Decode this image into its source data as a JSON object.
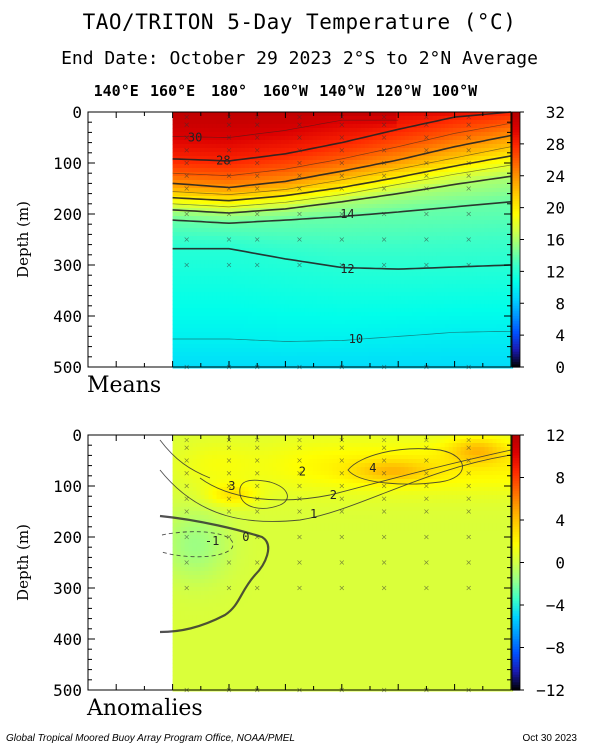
{
  "header": {
    "title": "TAO/TRITON 5-Day Temperature (°C)",
    "subtitle": "End Date: October 29 2023   2°S to 2°N Average"
  },
  "footer": {
    "left": "Global Tropical Moored Buoy Array Program Office, NOAA/PMEL",
    "right": "Oct 30 2023"
  },
  "chart_data": [
    {
      "type": "heatmap",
      "panel_label": "Means",
      "ylabel": "Depth (m)",
      "y_reversed": true,
      "ylim": [
        0,
        500
      ],
      "xlim_deg_east": [
        130,
        280
      ],
      "data_start_deg_east": 160,
      "x_ticks": [
        {
          "lon": 140,
          "label": "140°E"
        },
        {
          "lon": 160,
          "label": "160°E"
        },
        {
          "lon": 180,
          "label": "180°"
        },
        {
          "lon": 200,
          "label": "160°W"
        },
        {
          "lon": 220,
          "label": "140°W"
        },
        {
          "lon": 240,
          "label": "120°W"
        },
        {
          "lon": 260,
          "label": "100°W"
        }
      ],
      "y_ticks": [
        0,
        100,
        200,
        300,
        400,
        500
      ],
      "colorbar": {
        "min": 0,
        "max": 32,
        "ticks": [
          0,
          4,
          8,
          12,
          16,
          20,
          24,
          28,
          32
        ],
        "colors": [
          "#000000",
          "#1a1ab0",
          "#0050ff",
          "#0096ff",
          "#00d2ff",
          "#00ffea",
          "#3cffc8",
          "#8cff8c",
          "#d2ff46",
          "#ffff00",
          "#ffd200",
          "#ffa000",
          "#ff6400",
          "#ff2800",
          "#dc0000",
          "#b40000"
        ]
      },
      "isotherm_depths": {
        "lon": [
          160,
          180,
          200,
          220,
          240,
          260,
          280
        ],
        "levels": {
          "30": [
            48,
            50,
            36,
            16,
            null,
            null,
            null
          ],
          "28": [
            92,
            96,
            82,
            60,
            34,
            10,
            0
          ],
          "26": [
            120,
            125,
            112,
            92,
            68,
            42,
            22
          ],
          "24": [
            140,
            148,
            136,
            116,
            94,
            68,
            46
          ],
          "22": [
            156,
            162,
            152,
            133,
            112,
            90,
            68
          ],
          "20": [
            168,
            174,
            164,
            148,
            128,
            106,
            86
          ],
          "18": [
            180,
            186,
            177,
            162,
            142,
            122,
            104
          ],
          "16": [
            192,
            198,
            190,
            176,
            160,
            142,
            126
          ],
          "14": [
            212,
            218,
            212,
            205,
            196,
            186,
            176
          ],
          "12": [
            268,
            268,
            288,
            305,
            308,
            304,
            300
          ],
          "10": [
            445,
            445,
            450,
            448,
            440,
            432,
            430
          ]
        }
      },
      "contour_labels": [
        {
          "text": "30",
          "lon": 168,
          "depth": 50
        },
        {
          "text": "28",
          "lon": 178,
          "depth": 95
        },
        {
          "text": "14",
          "lon": 222,
          "depth": 200
        },
        {
          "text": "12",
          "lon": 222,
          "depth": 308
        },
        {
          "text": "10",
          "lon": 225,
          "depth": 445
        }
      ]
    },
    {
      "type": "heatmap",
      "panel_label": "Anomalies",
      "ylabel": "Depth (m)",
      "y_reversed": true,
      "ylim": [
        0,
        500
      ],
      "xlim_deg_east": [
        130,
        280
      ],
      "data_start_deg_east": 160,
      "x_ticks": [
        140,
        160,
        180,
        200,
        220,
        240,
        260
      ],
      "y_ticks": [
        0,
        100,
        200,
        300,
        400,
        500
      ],
      "colorbar": {
        "min": -12,
        "max": 12,
        "ticks": [
          -12,
          -8,
          -4,
          0,
          4,
          8,
          12
        ],
        "colors": [
          "#000000",
          "#1a1ab0",
          "#0050ff",
          "#0096ff",
          "#00d2ff",
          "#3cffc8",
          "#96ff8c",
          "#d2ff46",
          "#ffff00",
          "#ffd200",
          "#ffa000",
          "#ff6400",
          "#ff2800",
          "#dc0000",
          "#b40000"
        ]
      },
      "background_anomaly": 0.3,
      "features": [
        {
          "name": "warm core 3",
          "value": 3,
          "lon": 181,
          "depth": 118
        },
        {
          "name": "warm core 4",
          "value": 4,
          "lon": 238,
          "depth": 72
        },
        {
          "name": "warm east",
          "value": 4,
          "lon": 265,
          "depth": 40
        },
        {
          "name": "cool core -1",
          "value": -1,
          "lon": 170,
          "depth": 205
        }
      ],
      "contour_labels": [
        {
          "text": "3",
          "lon": 181,
          "depth": 100
        },
        {
          "text": "2",
          "lon": 206,
          "depth": 72
        },
        {
          "text": "4",
          "lon": 231,
          "depth": 65
        },
        {
          "text": "2",
          "lon": 217,
          "depth": 118
        },
        {
          "text": "1",
          "lon": 210,
          "depth": 155
        },
        {
          "text": "-1",
          "lon": 174,
          "depth": 208
        },
        {
          "text": "0",
          "lon": 186,
          "depth": 200
        }
      ]
    }
  ]
}
